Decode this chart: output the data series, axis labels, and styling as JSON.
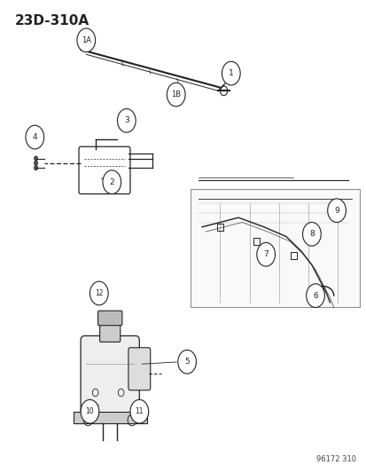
{
  "title": "23D-310A",
  "footer": "96172 310",
  "bg_color": "#ffffff",
  "fig_width": 4.14,
  "fig_height": 5.33,
  "dpi": 100
}
